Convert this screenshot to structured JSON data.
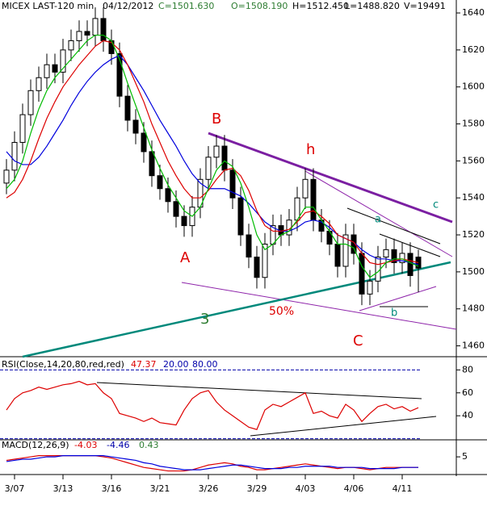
{
  "chart_data": [
    {
      "type": "candlestick",
      "title": "MICEX LAST-120 min",
      "date": "04/12/2012",
      "readouts": [
        "C=1501.630",
        "O=1508.190",
        "H=1512.450",
        "L=1488.820",
        "V=19491"
      ],
      "categories": [
        null,
        "3/07",
        null,
        null,
        null,
        null,
        null,
        "3/13",
        null,
        null,
        null,
        null,
        null,
        "3/16",
        null,
        null,
        null,
        null,
        null,
        "3/21",
        null,
        null,
        null,
        null,
        null,
        "3/26",
        null,
        null,
        null,
        null,
        null,
        "3/29",
        null,
        null,
        null,
        null,
        null,
        "4/03",
        null,
        null,
        null,
        null,
        null,
        "4/06",
        null,
        null,
        null,
        null,
        null,
        "4/11",
        null,
        null
      ],
      "open": [
        1548,
        1555,
        1570,
        1585,
        1598,
        1605,
        1612,
        1608,
        1620,
        1625,
        1630,
        1628,
        1637,
        1625,
        1618,
        1595,
        1582,
        1575,
        1565,
        1552,
        1545,
        1538,
        1530,
        1525,
        1535,
        1550,
        1562,
        1568,
        1555,
        1540,
        1520,
        1508,
        1497,
        1515,
        1525,
        1520,
        1528,
        1540,
        1550,
        1528,
        1522,
        1515,
        1503,
        1520,
        1510,
        1488,
        1495,
        1508,
        1512,
        1505,
        1510,
        1508
      ],
      "high": [
        1561,
        1576,
        1591,
        1604,
        1611,
        1618,
        1618,
        1626,
        1631,
        1636,
        1636,
        1643,
        1643,
        1631,
        1624,
        1601,
        1588,
        1581,
        1571,
        1558,
        1551,
        1544,
        1536,
        1541,
        1556,
        1568,
        1574,
        1574,
        1561,
        1546,
        1526,
        1514,
        1521,
        1531,
        1531,
        1534,
        1546,
        1556,
        1556,
        1534,
        1528,
        1521,
        1526,
        1526,
        1516,
        1501,
        1514,
        1518,
        1518,
        1516,
        1516,
        1512
      ],
      "low": [
        1542,
        1549,
        1564,
        1579,
        1592,
        1599,
        1602,
        1602,
        1614,
        1619,
        1622,
        1622,
        1619,
        1612,
        1589,
        1576,
        1569,
        1559,
        1546,
        1539,
        1532,
        1524,
        1519,
        1519,
        1529,
        1544,
        1556,
        1549,
        1534,
        1514,
        1502,
        1491,
        1491,
        1509,
        1514,
        1514,
        1522,
        1534,
        1522,
        1516,
        1509,
        1497,
        1497,
        1504,
        1482,
        1482,
        1489,
        1502,
        1499,
        1499,
        1492,
        1489
      ],
      "close": [
        1555,
        1570,
        1585,
        1598,
        1605,
        1612,
        1608,
        1620,
        1625,
        1630,
        1628,
        1637,
        1625,
        1618,
        1595,
        1582,
        1575,
        1565,
        1552,
        1545,
        1538,
        1530,
        1525,
        1535,
        1550,
        1562,
        1568,
        1555,
        1540,
        1520,
        1508,
        1497,
        1515,
        1525,
        1520,
        1528,
        1540,
        1550,
        1528,
        1522,
        1515,
        1503,
        1520,
        1510,
        1488,
        1495,
        1508,
        1512,
        1505,
        1510,
        1498,
        1502
      ],
      "series": [
        {
          "color": "#0000dd",
          "values": [
            1565,
            1560,
            1558,
            1558,
            1562,
            1568,
            1575,
            1582,
            1590,
            1597,
            1603,
            1608,
            1612,
            1615,
            1617,
            1612,
            1605,
            1598,
            1590,
            1582,
            1575,
            1568,
            1560,
            1553,
            1548,
            1545,
            1545,
            1545,
            1543,
            1541,
            1537,
            1532,
            1527,
            1524,
            1522,
            1522,
            1524,
            1527,
            1528,
            1527,
            1524,
            1520,
            1518,
            1516,
            1512,
            1509,
            1507,
            1507,
            1506,
            1506,
            1505,
            1504
          ]
        },
        {
          "color": "#dd0000",
          "values": [
            1540,
            1543,
            1550,
            1560,
            1572,
            1583,
            1592,
            1600,
            1606,
            1612,
            1617,
            1622,
            1625,
            1624,
            1620,
            1612,
            1602,
            1592,
            1580,
            1570,
            1560,
            1552,
            1545,
            1540,
            1540,
            1544,
            1550,
            1555,
            1556,
            1552,
            1544,
            1533,
            1525,
            1522,
            1522,
            1523,
            1527,
            1532,
            1533,
            1530,
            1526,
            1520,
            1518,
            1516,
            1510,
            1505,
            1504,
            1505,
            1506,
            1507,
            1506,
            1505
          ]
        },
        {
          "color": "#00bb00",
          "values": [
            1545,
            1550,
            1560,
            1575,
            1588,
            1598,
            1605,
            1610,
            1615,
            1620,
            1625,
            1628,
            1628,
            1625,
            1615,
            1602,
            1590,
            1578,
            1566,
            1556,
            1547,
            1540,
            1533,
            1530,
            1535,
            1545,
            1555,
            1560,
            1557,
            1548,
            1535,
            1520,
            1512,
            1515,
            1520,
            1522,
            1528,
            1535,
            1535,
            1528,
            1522,
            1515,
            1515,
            1513,
            1503,
            1497,
            1500,
            1505,
            1507,
            1507,
            1505,
            1503
          ]
        }
      ],
      "ylim": [
        1455,
        1647
      ],
      "yticks": [
        1460,
        1480,
        1500,
        1520,
        1540,
        1560,
        1580,
        1600,
        1620,
        1640
      ],
      "annotations": [
        "A",
        "B",
        "h",
        "C",
        "3",
        "50%",
        "a",
        "b",
        "c"
      ]
    },
    {
      "type": "line",
      "title": "RSI(Close,14,20,80,red,red)",
      "last_label": "47.37",
      "levels": [
        {
          "value": 20,
          "label": "20.00"
        },
        {
          "value": 80,
          "label": "80.00"
        }
      ],
      "series": [
        {
          "color": "#dd0000",
          "values": [
            45,
            55,
            60,
            62,
            65,
            63,
            65,
            67,
            68,
            70,
            67,
            68,
            60,
            55,
            42,
            40,
            38,
            35,
            38,
            34,
            33,
            32,
            45,
            55,
            60,
            62,
            52,
            45,
            40,
            35,
            30,
            28,
            45,
            50,
            48,
            52,
            56,
            60,
            42,
            44,
            40,
            38,
            50,
            45,
            35,
            42,
            48,
            50,
            46,
            48,
            44,
            47
          ]
        }
      ],
      "ylim": [
        19,
        88
      ],
      "yticks": [
        40,
        60,
        80
      ]
    },
    {
      "type": "line",
      "title": "MACD(12,26,9)",
      "readouts": [
        "-4.03",
        "-4.46",
        "0.43"
      ],
      "series": [
        {
          "color": "#dd0000",
          "values": [
            2,
            3,
            4,
            5,
            6,
            6,
            6,
            6,
            6,
            6,
            6,
            6,
            5,
            4,
            2,
            0,
            -2,
            -4,
            -5,
            -6,
            -7,
            -7,
            -7,
            -6,
            -4,
            -2,
            -1,
            0,
            -1,
            -3,
            -4,
            -6,
            -6,
            -5,
            -4,
            -3,
            -2,
            -1,
            -2,
            -3,
            -4,
            -5,
            -4,
            -4,
            -5,
            -6,
            -5,
            -4,
            -4,
            -4,
            -4,
            -4
          ]
        },
        {
          "color": "#0000dd",
          "values": [
            1,
            2,
            3,
            3,
            4,
            5,
            5,
            6,
            6,
            6,
            6,
            6,
            6,
            5,
            4,
            3,
            2,
            0,
            -1,
            -3,
            -4,
            -5,
            -6,
            -6,
            -6,
            -5,
            -4,
            -3,
            -2,
            -2,
            -3,
            -4,
            -5,
            -5,
            -5,
            -4,
            -4,
            -3,
            -3,
            -3,
            -3,
            -4,
            -4,
            -4,
            -4,
            -5,
            -5,
            -5,
            -5,
            -4,
            -4,
            -4
          ]
        }
      ],
      "ylim": [
        -8,
        19.5
      ],
      "yticks": [
        5
      ]
    }
  ]
}
